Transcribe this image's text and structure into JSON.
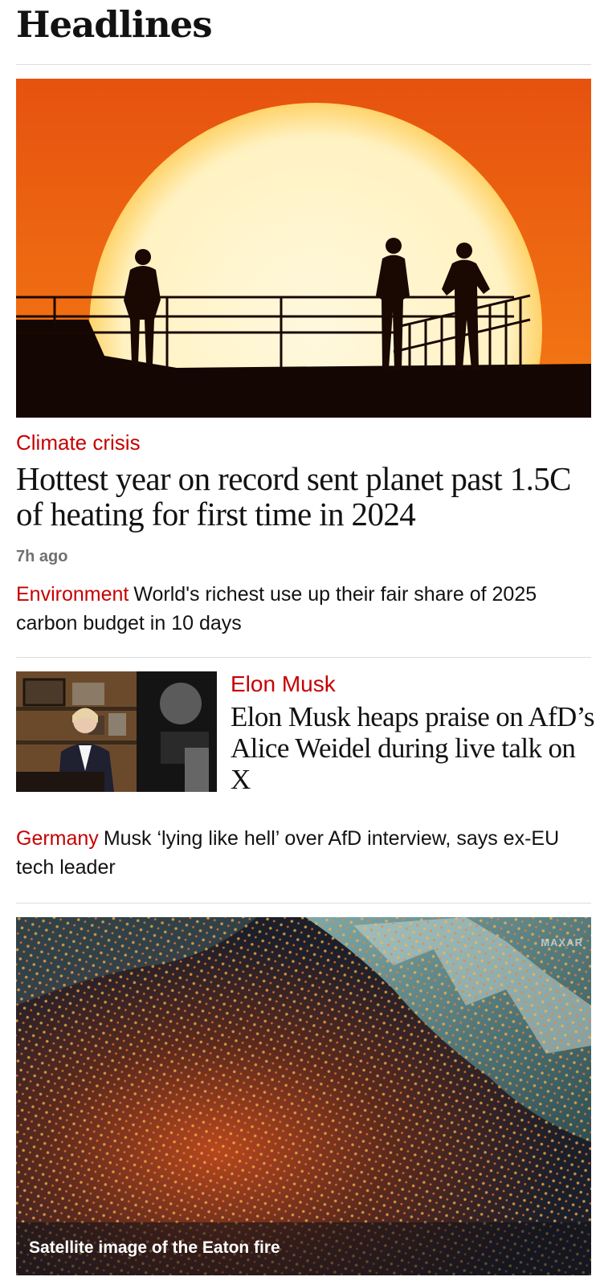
{
  "section": {
    "title": "Headlines"
  },
  "lead": {
    "kicker": "Climate crisis",
    "title": "Hottest year on record sent planet past 1.5C of heating for first time in 2024",
    "age": "7h ago",
    "related": {
      "kicker": "Environment",
      "text": "World's richest use up their fair share of 2025 carbon budget in 10 days"
    }
  },
  "card": {
    "kicker": "Elon Musk",
    "title": "Elon Musk heaps praise on AfD’s Alice Weidel during live talk on X",
    "related": {
      "kicker": "Germany",
      "text": "Musk ‘lying like hell’ over AfD interview, says ex-EU tech leader"
    }
  },
  "feature": {
    "caption": "Satellite image of the Eaton fire",
    "credit": "MAXAR"
  },
  "colors": {
    "kicker": "#c70000",
    "text": "#121212",
    "meta": "#707070"
  }
}
